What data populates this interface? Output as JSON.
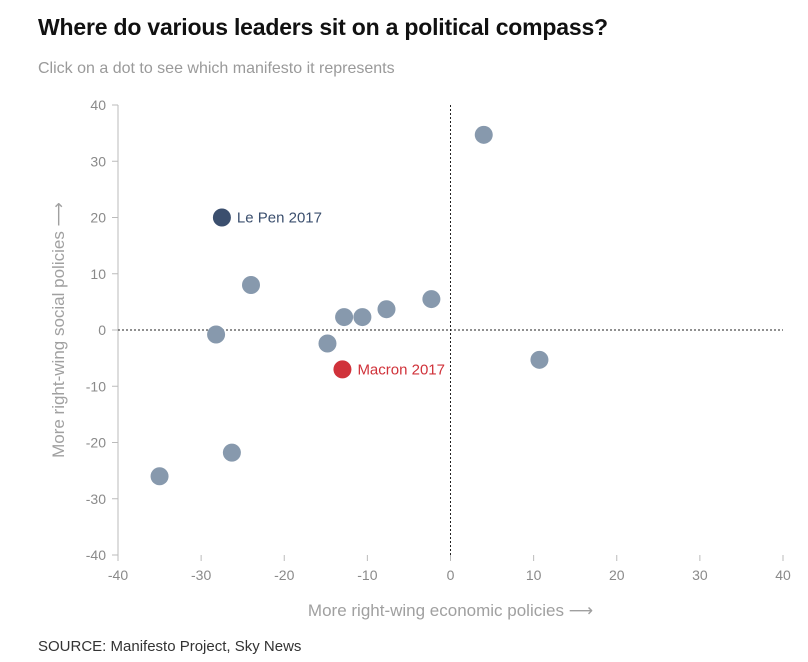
{
  "title": "Where do various leaders sit on a political compass?",
  "subtitle": "Click on a dot to see which manifesto it represents",
  "source": "SOURCE: Manifesto Project, Sky News",
  "colors": {
    "default_dot": "#8799ad",
    "le_pen": "#3b4f6e",
    "macron": "#d0323a",
    "zero_line": "#222222",
    "axis": "#bbbbbb"
  },
  "chart_data": {
    "type": "scatter",
    "xlabel": "More right-wing economic policies ⟶",
    "ylabel": "More right-wing social policies ⟶",
    "xlim": [
      -40,
      40
    ],
    "ylim": [
      -40,
      40
    ],
    "xticks": [
      -40,
      -30,
      -20,
      -10,
      0,
      10,
      20,
      30,
      40
    ],
    "yticks": [
      -40,
      -30,
      -20,
      -10,
      0,
      10,
      20,
      30,
      40
    ],
    "points": [
      {
        "x": 4,
        "y": 34.7
      },
      {
        "x": -27.5,
        "y": 20,
        "label": "Le Pen 2017",
        "highlight": "le_pen"
      },
      {
        "x": -24,
        "y": 8
      },
      {
        "x": -2.3,
        "y": 5.5
      },
      {
        "x": -7.7,
        "y": 3.7
      },
      {
        "x": -12.8,
        "y": 2.3
      },
      {
        "x": -10.6,
        "y": 2.3
      },
      {
        "x": -28.2,
        "y": -0.8
      },
      {
        "x": -14.8,
        "y": -2.4
      },
      {
        "x": 10.7,
        "y": -5.3
      },
      {
        "x": -13,
        "y": -7,
        "label": "Macron 2017",
        "highlight": "macron"
      },
      {
        "x": -26.3,
        "y": -21.8
      },
      {
        "x": -35,
        "y": -26
      }
    ]
  }
}
